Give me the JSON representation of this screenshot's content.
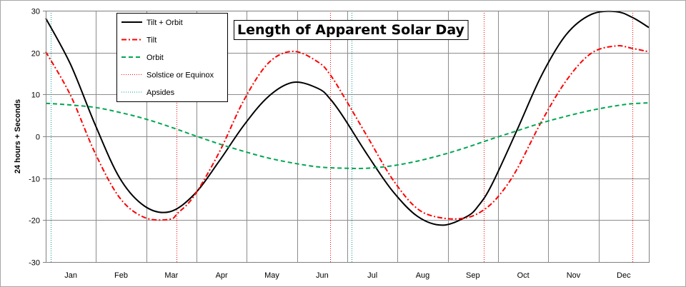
{
  "chart_data": {
    "type": "line",
    "title": "Length of Apparent Solar Day",
    "xlabel": "",
    "ylabel": "24 hours + Seconds",
    "ylim": [
      -30,
      30
    ],
    "yticks": [
      -30,
      -20,
      -10,
      0,
      10,
      20,
      30
    ],
    "xlim": [
      0,
      365
    ],
    "month_labels": [
      "Jan",
      "Feb",
      "Mar",
      "Apr",
      "May",
      "Jun",
      "Jul",
      "Aug",
      "Sep",
      "Oct",
      "Nov",
      "Dec"
    ],
    "grid": true,
    "legend_position": "top-left",
    "series": [
      {
        "name": "Tilt + Orbit",
        "color": "#000000",
        "dash": "solid",
        "x": [
          0,
          15,
          30,
          45,
          60,
          75,
          90,
          105,
          120,
          135,
          150,
          165,
          172,
          180,
          195,
          210,
          225,
          240,
          255,
          262,
          270,
          285,
          300,
          315,
          330,
          345,
          355,
          365
        ],
        "y": [
          28.2,
          17.2,
          2.7,
          -10.1,
          -16.7,
          -18.0,
          -13.8,
          -5.9,
          2.7,
          9.6,
          12.9,
          11.4,
          9.0,
          4.7,
          -4.6,
          -13.1,
          -19.1,
          -21.2,
          -19.1,
          -16.5,
          -11.5,
          1.3,
          14.5,
          24.3,
          29.1,
          29.8,
          28.4,
          26.0
        ]
      },
      {
        "name": "Tilt",
        "color": "#ff0000",
        "dash": "dashdot",
        "x": [
          0,
          15,
          30,
          45,
          60,
          75,
          80,
          90,
          105,
          120,
          135,
          150,
          165,
          172,
          180,
          195,
          210,
          225,
          240,
          255,
          266,
          275,
          285,
          300,
          315,
          330,
          345,
          355,
          365
        ],
        "y": [
          20.2,
          9.8,
          -4.1,
          -14.8,
          -19.4,
          -19.8,
          -18.3,
          -14.1,
          -3.8,
          8.7,
          17.6,
          20.3,
          17.7,
          14.8,
          9.8,
          -0.3,
          -10.3,
          -17.3,
          -19.5,
          -19.4,
          -17.3,
          -13.8,
          -8.0,
          3.5,
          13.3,
          19.8,
          21.6,
          21.0,
          20.2
        ]
      },
      {
        "name": "Orbit",
        "color": "#00a651",
        "dash": "dashed",
        "x": [
          0,
          15,
          30,
          45,
          60,
          75,
          90,
          105,
          120,
          135,
          150,
          165,
          180,
          195,
          210,
          225,
          240,
          255,
          270,
          285,
          300,
          315,
          330,
          345,
          355,
          365
        ],
        "y": [
          7.9,
          7.5,
          6.9,
          5.7,
          4.2,
          2.3,
          0.2,
          -1.8,
          -3.6,
          -5.2,
          -6.4,
          -7.3,
          -7.6,
          -7.6,
          -7.0,
          -5.9,
          -4.4,
          -2.6,
          -0.6,
          1.3,
          3.2,
          4.8,
          6.2,
          7.3,
          7.8,
          8.0
        ]
      },
      {
        "name": "Solstice or Equinox",
        "color": "#ff0000",
        "dash": "dotted",
        "kind": "vline",
        "x": [
          79,
          172,
          265,
          355
        ]
      },
      {
        "name": "Apsides",
        "color": "#009999",
        "dash": "dotted",
        "kind": "vline",
        "x": [
          3,
          185
        ]
      }
    ]
  }
}
